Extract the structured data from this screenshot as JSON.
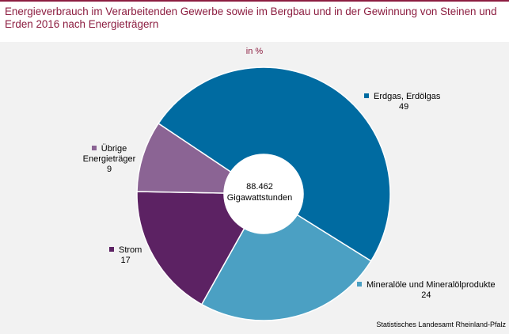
{
  "title": "Energieverbrauch im Verarbeitenden Gewerbe sowie im Bergbau und in der Gewinnung von Steinen und Erden 2016 nach Energieträgern",
  "unit_label": "in %",
  "center": {
    "value": "88.462",
    "unit": "Gigawattstunden"
  },
  "source": "Statistisches Landesamt Rheinland-Pfalz",
  "colors": {
    "accent": "#8c1d40",
    "background": "#f2f2f2"
  },
  "chart_data": {
    "type": "pie",
    "donut": true,
    "title": "Energieverbrauch im Verarbeitenden Gewerbe sowie im Bergbau und in der Gewinnung von Steinen und Erden 2016 nach Energieträgern",
    "unit": "in %",
    "total": "88.462 Gigawattstunden",
    "slices": [
      {
        "label": "Erdgas, Erdölgas",
        "value": 49,
        "color": "#006ba1"
      },
      {
        "label": "Mineralöle und Mineralölprodukte",
        "value": 24,
        "color": "#4ba0c3"
      },
      {
        "label": "Strom",
        "value": 17,
        "color": "#5c2263"
      },
      {
        "label": "Übrige Energieträger",
        "value": 9,
        "color": "#8b6494"
      }
    ]
  }
}
